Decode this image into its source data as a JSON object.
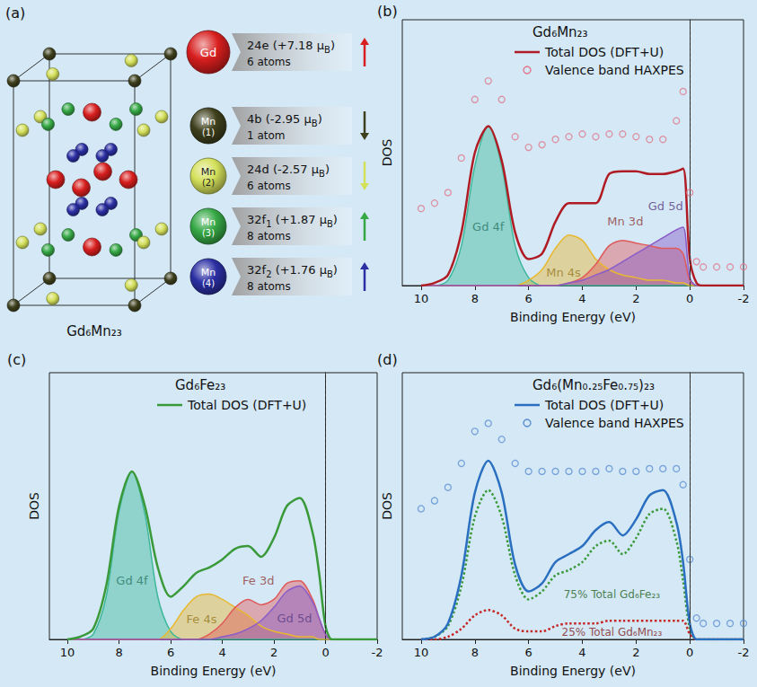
{
  "structure": {
    "panel": "(a)",
    "compound": "Gd₆Mn₂₃",
    "sites": [
      {
        "element": "Gd",
        "label_parts": [
          {
            "text": "24e (+7.18 μ"
          },
          {
            "text": "B",
            "sub": true
          },
          {
            "text": ")"
          }
        ],
        "atoms": "6 atoms",
        "color": "#d81e1e",
        "arrow": "up"
      },
      {
        "element": "Mn",
        "index": "(1)",
        "label_parts": [
          {
            "text": "4b (-2.95 μ"
          },
          {
            "text": "B",
            "sub": true
          },
          {
            "text": ")"
          }
        ],
        "atoms": "1 atom",
        "color": "#3e3f1c",
        "arrow": "down"
      },
      {
        "element": "Mn",
        "index": "(2)",
        "label_parts": [
          {
            "text": "24d (-2.57 μ"
          },
          {
            "text": "B",
            "sub": true
          },
          {
            "text": ")"
          }
        ],
        "atoms": "6 atoms",
        "color": "#d3e05a",
        "arrow": "down"
      },
      {
        "element": "Mn",
        "index": "(3)",
        "label_parts": [
          {
            "text": "32f"
          },
          {
            "text": "1",
            "sub": true
          },
          {
            "text": " (+1.87 μ"
          },
          {
            "text": "B",
            "sub": true
          },
          {
            "text": ")"
          }
        ],
        "atoms": "8 atoms",
        "color": "#35a845",
        "arrow": "up"
      },
      {
        "element": "Mn",
        "index": "(4)",
        "label_parts": [
          {
            "text": "32f"
          },
          {
            "text": "2",
            "sub": true
          },
          {
            "text": " (+1.76 μ"
          },
          {
            "text": "B",
            "sub": true
          },
          {
            "text": ")"
          }
        ],
        "atoms": "8 atoms",
        "color": "#2b2fa3",
        "arrow": "up"
      }
    ]
  },
  "chart_data": [
    {
      "type": "line",
      "panel": "(b)",
      "title": "Gd₆Mn₂₃",
      "xlabel": "Binding Energy (eV)",
      "ylabel": "DOS",
      "xlim": [
        10.7,
        -2
      ],
      "xticks": [
        10,
        8,
        6,
        4,
        2,
        0,
        -2
      ],
      "ylim": [
        0,
        1
      ],
      "tick_labels": "x",
      "grid": false,
      "legend": "top",
      "vlines": [
        0
      ],
      "x": [
        10,
        9.5,
        9,
        8.5,
        8,
        7.5,
        7,
        6.5,
        6,
        5.5,
        5,
        4.5,
        4,
        3.5,
        3,
        2.5,
        2,
        1.5,
        1,
        0.5,
        0.25,
        0,
        -0.25,
        -0.5,
        -1,
        -1.5,
        -2
      ],
      "series": [
        {
          "name": "Gd 4f",
          "type": "area",
          "color": "#3fb89a",
          "values": [
            0,
            0,
            0.02,
            0.15,
            0.45,
            0.6,
            0.45,
            0.15,
            0.03,
            0,
            0,
            0,
            0,
            0,
            0,
            0,
            0,
            0,
            0,
            0,
            0,
            0,
            0,
            0,
            0,
            0,
            0
          ]
        },
        {
          "name": "Mn 4s",
          "type": "area",
          "color": "#e8b830",
          "values": [
            0,
            0,
            0,
            0,
            0,
            0,
            0,
            0,
            0.02,
            0.06,
            0.14,
            0.19,
            0.17,
            0.1,
            0.06,
            0.04,
            0.03,
            0.02,
            0.02,
            0.01,
            0.01,
            0,
            0,
            0,
            0,
            0,
            0
          ]
        },
        {
          "name": "Mn 3d",
          "type": "area",
          "color": "#e05a5a",
          "values": [
            0,
            0,
            0,
            0,
            0,
            0,
            0,
            0,
            0,
            0,
            0,
            0.01,
            0.03,
            0.08,
            0.15,
            0.17,
            0.16,
            0.15,
            0.14,
            0.14,
            0.12,
            0.02,
            0,
            0,
            0,
            0,
            0
          ]
        },
        {
          "name": "Gd 5d",
          "type": "area",
          "color": "#8a5cc8",
          "values": [
            0,
            0,
            0,
            0,
            0,
            0,
            0,
            0,
            0,
            0,
            0,
            0.01,
            0.02,
            0.04,
            0.06,
            0.09,
            0.12,
            0.15,
            0.18,
            0.21,
            0.22,
            0.03,
            0,
            0,
            0,
            0,
            0
          ]
        },
        {
          "name": "Total DOS (DFT+U)",
          "type": "line",
          "color": "#b01c24",
          "values": [
            0,
            0.01,
            0.04,
            0.2,
            0.5,
            0.6,
            0.47,
            0.2,
            0.1,
            0.12,
            0.24,
            0.31,
            0.31,
            0.31,
            0.42,
            0.43,
            0.43,
            0.42,
            0.42,
            0.43,
            0.44,
            0.1,
            0.01,
            0,
            0,
            0,
            0
          ]
        },
        {
          "name": "Valence band HAXPES",
          "type": "scatter",
          "marker": "open_circle",
          "color": "#e0798c",
          "values": [
            0.29,
            0.31,
            0.35,
            0.48,
            0.7,
            0.77,
            0.7,
            0.56,
            0.52,
            0.53,
            0.55,
            0.56,
            0.57,
            0.56,
            0.57,
            0.57,
            0.56,
            0.55,
            0.55,
            0.62,
            0.73,
            0.35,
            0.09,
            0.07,
            0.07,
            0.07,
            0.07
          ]
        }
      ],
      "annotations": [
        {
          "text": "Gd 4f",
          "x": 7.5,
          "y": 0.22
        },
        {
          "text": "Mn 4s",
          "x": 4.7,
          "y": 0.05
        },
        {
          "text": "Mn 3d",
          "x": 2.4,
          "y": 0.24
        },
        {
          "text": "Gd 5d",
          "x": 0.9,
          "y": 0.3
        }
      ]
    },
    {
      "type": "line",
      "panel": "(c)",
      "title": "Gd₆Fe₂₃",
      "xlabel": "Binding Energy (eV)",
      "ylabel": "DOS",
      "xlim": [
        10.7,
        -2
      ],
      "xticks": [
        10,
        8,
        6,
        4,
        2,
        0,
        -2
      ],
      "ylim": [
        0,
        1
      ],
      "tick_labels": "x",
      "grid": false,
      "legend": "top",
      "vlines": [
        0
      ],
      "x": [
        10,
        9.5,
        9,
        8.5,
        8,
        7.5,
        7,
        6.5,
        6,
        5.5,
        5,
        4.5,
        4,
        3.5,
        3,
        2.5,
        2,
        1.5,
        1,
        0.5,
        0.25,
        0,
        -0.25,
        -0.5,
        -1,
        -1.5,
        -2
      ],
      "series": [
        {
          "name": "Gd 4f",
          "type": "area",
          "color": "#3fb89a",
          "values": [
            0,
            0,
            0.02,
            0.16,
            0.48,
            0.63,
            0.47,
            0.16,
            0.03,
            0,
            0,
            0,
            0,
            0,
            0,
            0,
            0,
            0,
            0,
            0,
            0,
            0,
            0,
            0,
            0,
            0,
            0
          ]
        },
        {
          "name": "Fe 4s",
          "type": "area",
          "color": "#e8b830",
          "values": [
            0,
            0,
            0,
            0,
            0,
            0,
            0,
            0,
            0.04,
            0.11,
            0.16,
            0.17,
            0.15,
            0.12,
            0.09,
            0.05,
            0.03,
            0.02,
            0.01,
            0.01,
            0,
            0,
            0,
            0,
            0,
            0,
            0
          ]
        },
        {
          "name": "Fe 3d",
          "type": "area",
          "color": "#e05a5a",
          "values": [
            0,
            0,
            0,
            0,
            0,
            0,
            0,
            0,
            0,
            0,
            0,
            0.02,
            0.06,
            0.12,
            0.15,
            0.13,
            0.15,
            0.21,
            0.22,
            0.15,
            0.08,
            0.02,
            0,
            0,
            0,
            0,
            0
          ]
        },
        {
          "name": "Gd 5d",
          "type": "area",
          "color": "#8a5cc8",
          "values": [
            0,
            0,
            0,
            0,
            0,
            0,
            0,
            0,
            0,
            0,
            0,
            0,
            0.01,
            0.02,
            0.04,
            0.07,
            0.12,
            0.18,
            0.2,
            0.14,
            0.08,
            0.02,
            0,
            0,
            0,
            0,
            0
          ]
        },
        {
          "name": "Total DOS (DFT+U)",
          "type": "line",
          "color": "#3a9a3a",
          "values": [
            0,
            0.01,
            0.04,
            0.2,
            0.5,
            0.63,
            0.5,
            0.27,
            0.16,
            0.2,
            0.25,
            0.27,
            0.3,
            0.34,
            0.35,
            0.31,
            0.38,
            0.5,
            0.53,
            0.4,
            0.25,
            0.05,
            0,
            0,
            0,
            0,
            0
          ]
        }
      ],
      "annotations": [
        {
          "text": "Gd 4f",
          "x": 7.5,
          "y": 0.22
        },
        {
          "text": "Fe 4s",
          "x": 4.8,
          "y": 0.075
        },
        {
          "text": "Fe 3d",
          "x": 2.6,
          "y": 0.22
        },
        {
          "text": "Gd 5d",
          "x": 1.2,
          "y": 0.08
        }
      ]
    },
    {
      "type": "line",
      "panel": "(d)",
      "title": "Gd₆(Mn₀.₂₅Fe₀.₇₅)₂₃",
      "xlabel": "Binding Energy (eV)",
      "ylabel": "DOS",
      "xlim": [
        10.7,
        -2
      ],
      "xticks": [
        10,
        8,
        6,
        4,
        2,
        0,
        -2
      ],
      "ylim": [
        0,
        1
      ],
      "tick_labels": "x",
      "grid": false,
      "legend": "top",
      "vlines": [
        0
      ],
      "x": [
        10,
        9.5,
        9,
        8.5,
        8,
        7.5,
        7,
        6.5,
        6,
        5.5,
        5,
        4.5,
        4,
        3.5,
        3,
        2.5,
        2,
        1.5,
        1,
        0.5,
        0.25,
        0,
        -0.25,
        -0.5,
        -1,
        -1.5,
        -2
      ],
      "series": [
        {
          "name": "75% Total Gd₆Fe₂₃",
          "type": "line",
          "line_style": "dotted",
          "color": "#3a9a3a",
          "values": [
            0,
            0.01,
            0.05,
            0.2,
            0.46,
            0.56,
            0.46,
            0.24,
            0.15,
            0.18,
            0.24,
            0.26,
            0.29,
            0.35,
            0.37,
            0.32,
            0.38,
            0.47,
            0.49,
            0.37,
            0.22,
            0.04,
            0,
            0,
            0,
            0,
            0
          ]
        },
        {
          "name": "25% Total Gd₆Mn₂₃",
          "type": "line",
          "line_style": "dotted",
          "color": "#c62828",
          "values": [
            0,
            0,
            0.01,
            0.04,
            0.09,
            0.11,
            0.09,
            0.04,
            0.03,
            0.03,
            0.05,
            0.06,
            0.06,
            0.06,
            0.07,
            0.07,
            0.07,
            0.07,
            0.07,
            0.07,
            0.07,
            0.02,
            0,
            0,
            0,
            0,
            0
          ]
        },
        {
          "name": "Total DOS (DFT+U)",
          "type": "line",
          "color": "#2a6fc0",
          "values": [
            0,
            0.01,
            0.06,
            0.24,
            0.55,
            0.67,
            0.55,
            0.28,
            0.18,
            0.21,
            0.29,
            0.32,
            0.35,
            0.41,
            0.44,
            0.39,
            0.45,
            0.54,
            0.56,
            0.44,
            0.29,
            0.06,
            0,
            0,
            0,
            0,
            0
          ]
        },
        {
          "name": "Valence band HAXPES",
          "type": "scatter",
          "marker": "open_circle",
          "color": "#5b8fd2",
          "values": [
            0.49,
            0.52,
            0.57,
            0.66,
            0.78,
            0.81,
            0.75,
            0.66,
            0.63,
            0.63,
            0.63,
            0.63,
            0.63,
            0.63,
            0.64,
            0.63,
            0.63,
            0.64,
            0.64,
            0.64,
            0.58,
            0.3,
            0.08,
            0.06,
            0.06,
            0.06,
            0.06
          ]
        }
      ],
      "annotations": [
        {
          "text": "75% Total Gd₆Fe₂₃",
          "x": 2.9,
          "y": 0.17
        },
        {
          "text": "25% Total Gd₆Mn₂₃",
          "x": 2.9,
          "y": 0.028
        }
      ]
    }
  ]
}
